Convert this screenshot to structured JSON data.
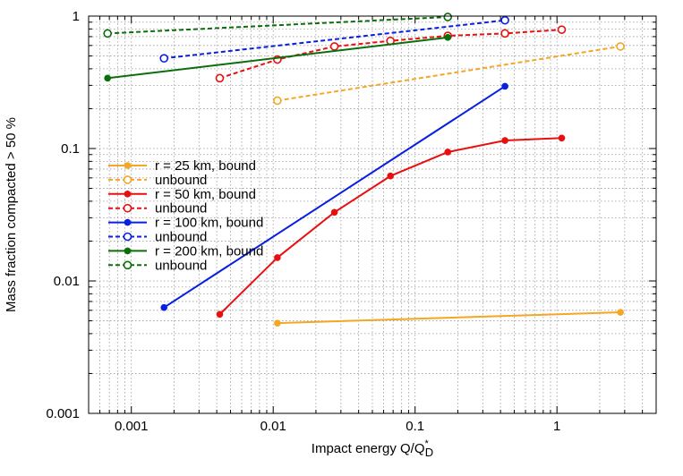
{
  "chart_data": {
    "type": "line",
    "xscale": "log",
    "yscale": "log",
    "xlim": [
      0.0005,
      5
    ],
    "ylim": [
      0.001,
      1
    ],
    "grid": true,
    "legend_position": "center-left",
    "xlabel": {
      "prefix": "Impact energy Q/Q",
      "sup": "*",
      "sub": "D"
    },
    "ylabel": "Mass fraction compacted > 50 %",
    "xticks": [
      {
        "value": 0.001,
        "label": "0.001"
      },
      {
        "value": 0.01,
        "label": "0.01"
      },
      {
        "value": 0.1,
        "label": "0.1"
      },
      {
        "value": 1,
        "label": "1"
      }
    ],
    "yticks": [
      {
        "value": 0.001,
        "label": "0.001"
      },
      {
        "value": 0.01,
        "label": "0.01"
      },
      {
        "value": 0.1,
        "label": "0.1"
      },
      {
        "value": 1,
        "label": "1"
      }
    ],
    "series": [
      {
        "name": "r = 25 km, bound",
        "color": "#f5a623",
        "dashed": false,
        "marker": "filled",
        "x": [
          0.0107,
          2.8
        ],
        "y": [
          0.0048,
          0.0058
        ]
      },
      {
        "name": "unbound",
        "color": "#f5a623",
        "dashed": true,
        "marker": "open",
        "x": [
          0.0107,
          2.8
        ],
        "y": [
          0.23,
          0.59
        ]
      },
      {
        "name": "r = 50 km, bound",
        "color": "#e8100f",
        "dashed": false,
        "marker": "filled",
        "x": [
          0.0042,
          0.0107,
          0.027,
          0.067,
          0.17,
          0.43,
          1.08
        ],
        "y": [
          0.0056,
          0.015,
          0.033,
          0.062,
          0.094,
          0.115,
          0.12
        ]
      },
      {
        "name": "unbound",
        "color": "#e8100f",
        "dashed": true,
        "marker": "open",
        "x": [
          0.0042,
          0.0107,
          0.027,
          0.067,
          0.17,
          0.43,
          1.08
        ],
        "y": [
          0.34,
          0.47,
          0.59,
          0.65,
          0.71,
          0.74,
          0.79
        ]
      },
      {
        "name": "r = 100 km, bound",
        "color": "#0a1fe0",
        "dashed": false,
        "marker": "filled",
        "x": [
          0.0017,
          0.43
        ],
        "y": [
          0.0063,
          0.295
        ]
      },
      {
        "name": "unbound",
        "color": "#0a1fe0",
        "dashed": true,
        "marker": "open",
        "x": [
          0.0017,
          0.43
        ],
        "y": [
          0.48,
          0.93
        ]
      },
      {
        "name": "r = 200 km, bound",
        "color": "#0b6e0b",
        "dashed": false,
        "marker": "filled",
        "x": [
          0.00068,
          0.17
        ],
        "y": [
          0.34,
          0.69
        ]
      },
      {
        "name": "unbound",
        "color": "#0b6e0b",
        "dashed": true,
        "marker": "open",
        "x": [
          0.00068,
          0.17
        ],
        "y": [
          0.74,
          0.985
        ]
      }
    ]
  }
}
